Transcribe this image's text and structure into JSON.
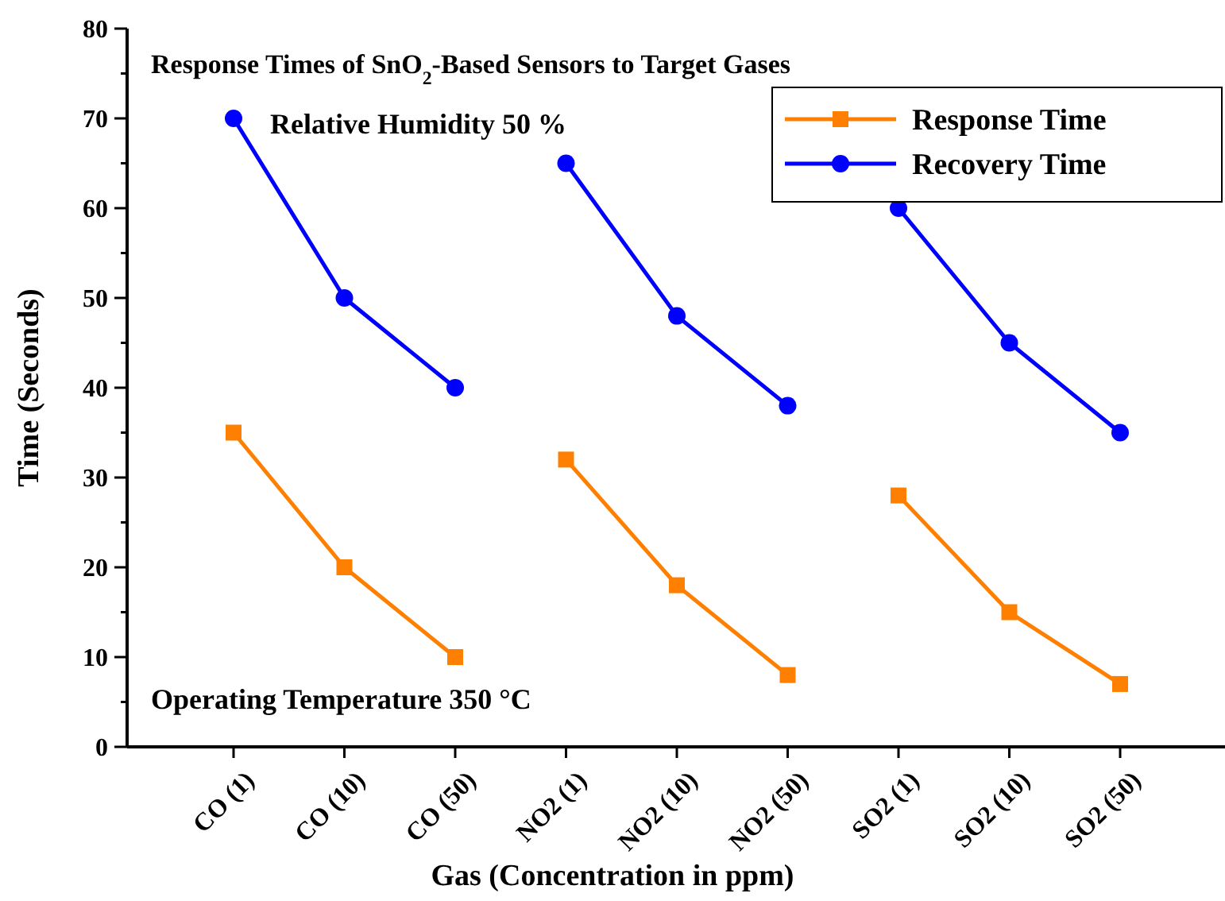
{
  "chart_data": {
    "type": "line",
    "title": "Response Times of SnO$_{2}$-Based Sensors to Target Gases",
    "xlabel": "Gas (Concentration in ppm)",
    "ylabel": "Time (Seconds)",
    "categories": [
      "CO (1)",
      "CO (10)",
      "CO (50)",
      "NO2 (1)",
      "NO2 (10)",
      "NO2 (50)",
      "SO2 (1)",
      "SO2 (10)",
      "SO2 (50)"
    ],
    "series": [
      {
        "name": "Response Time",
        "color": "#ff8000",
        "marker": "square",
        "values": [
          35,
          20,
          10,
          null,
          null,
          null,
          null,
          null,
          null
        ]
      },
      {
        "color": "#ff8000",
        "marker": "square",
        "values": [
          null,
          null,
          null,
          32,
          18,
          8,
          null,
          null,
          null
        ]
      },
      {
        "color": "#ff8000",
        "marker": "square",
        "values": [
          null,
          null,
          null,
          null,
          null,
          null,
          28,
          15,
          7
        ]
      },
      {
        "name": "Recovery Time",
        "color": "#0000ff",
        "marker": "circle",
        "values": [
          70,
          50,
          40,
          null,
          null,
          null,
          null,
          null,
          null
        ]
      },
      {
        "color": "#0000ff",
        "marker": "circle",
        "values": [
          null,
          null,
          null,
          65,
          48,
          38,
          null,
          null,
          null
        ]
      },
      {
        "color": "#0000ff",
        "marker": "circle",
        "values": [
          null,
          null,
          null,
          null,
          null,
          null,
          60,
          45,
          35
        ]
      }
    ],
    "ylim": [
      0,
      80
    ],
    "yticks": [
      0,
      {
        "value": 5,
        "label": null
      },
      10,
      {
        "value": 15,
        "label": null
      },
      20,
      {
        "value": 25,
        "label": null
      },
      30,
      {
        "value": 35,
        "label": null
      },
      40,
      {
        "value": 45,
        "label": null
      },
      50,
      {
        "value": 55,
        "label": null
      },
      60,
      {
        "value": 65,
        "label": null
      },
      70,
      {
        "value": 75,
        "label": null
      },
      80
    ],
    "annotations": [
      "Relative Humidity 50 %",
      "Operating Temperature 350 °C"
    ],
    "legend": "top right",
    "grid": false,
    "line_style": "solid"
  }
}
